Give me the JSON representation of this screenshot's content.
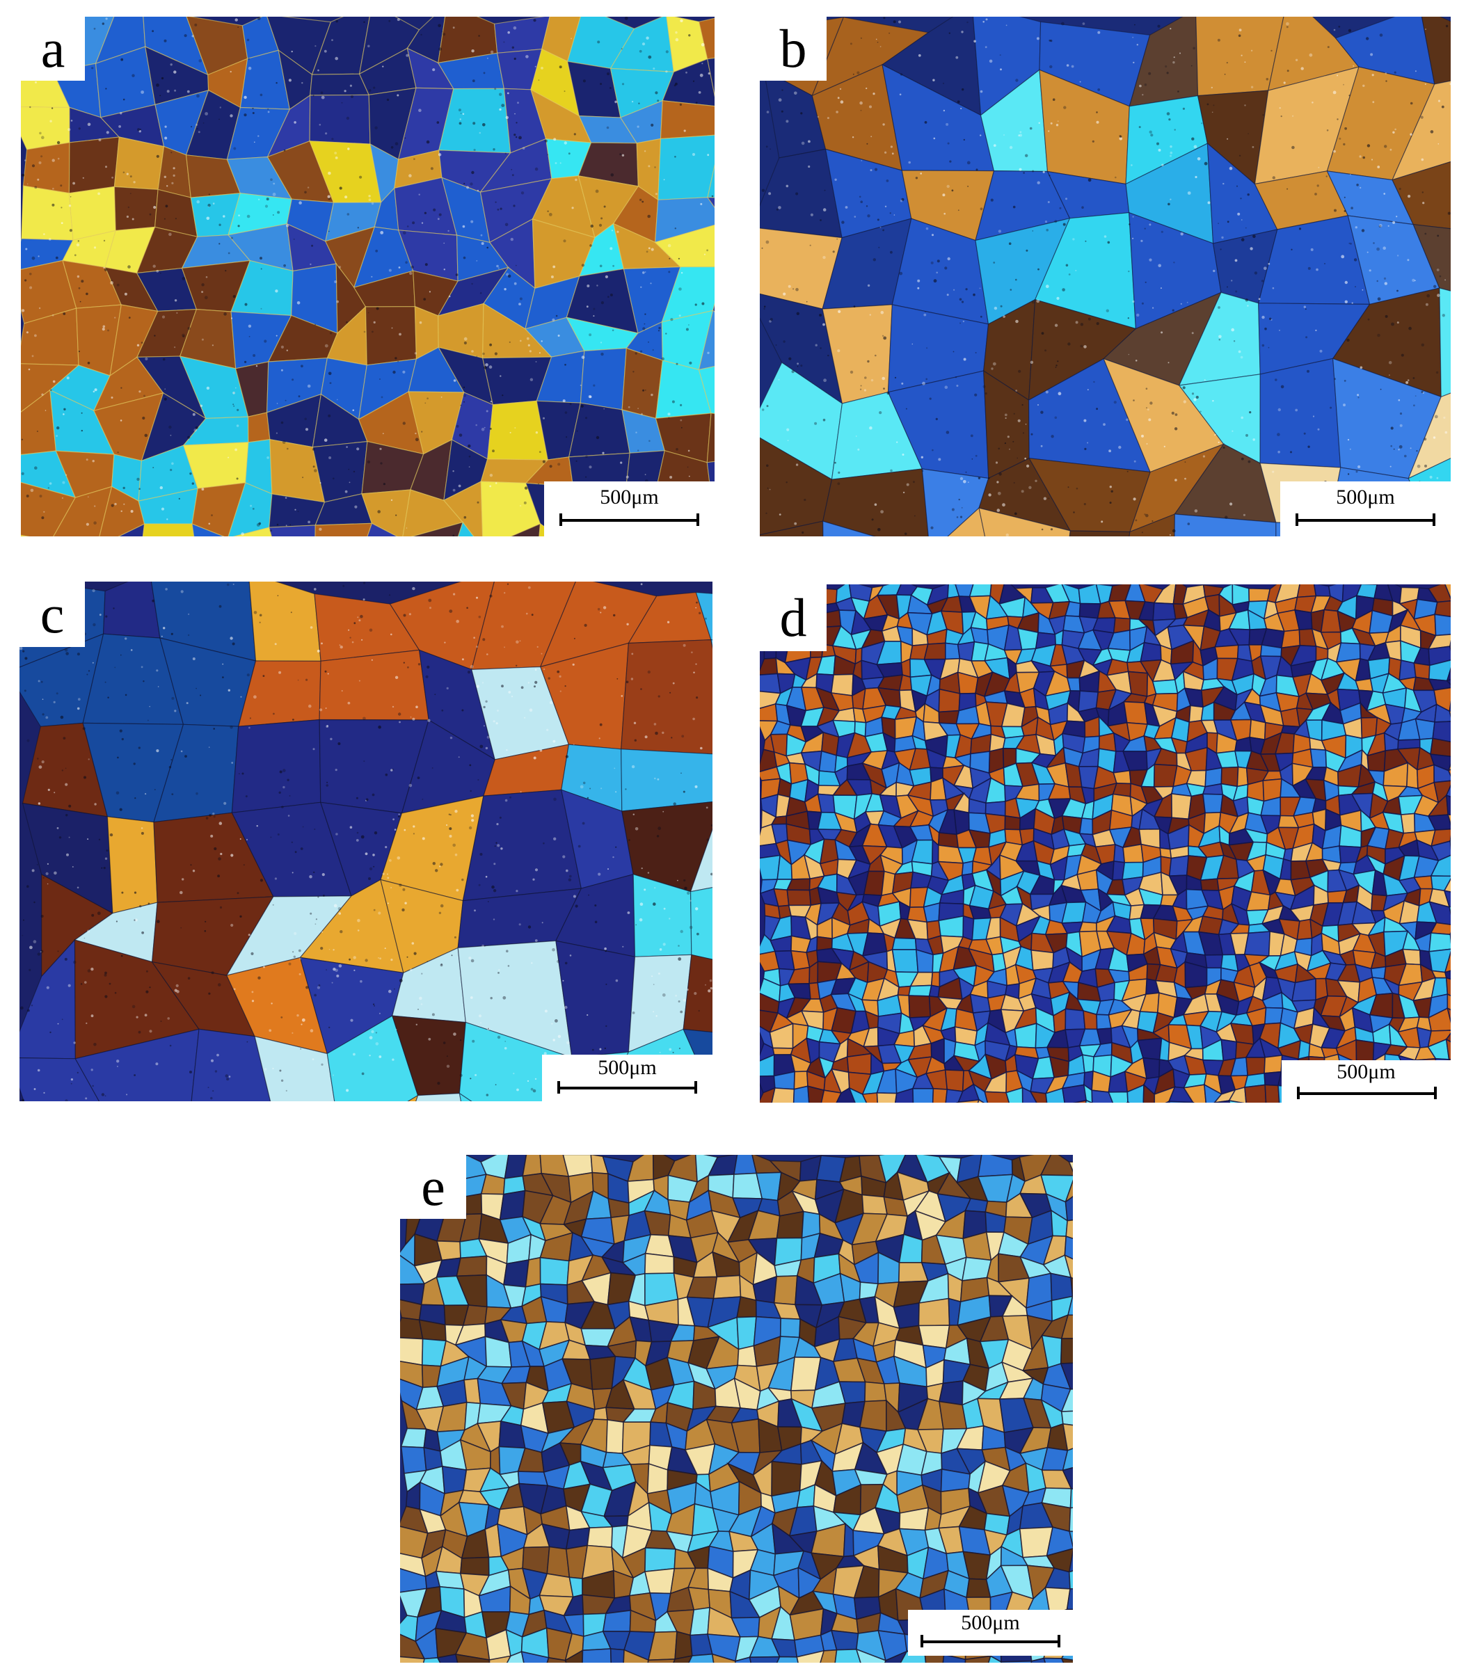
{
  "figure": {
    "panels": [
      {
        "id": "a",
        "label": "a",
        "scale_bar": "500μm",
        "palette": [
          "#1a2470",
          "#222c8a",
          "#2e3aa6",
          "#4b2a2e",
          "#6b3418",
          "#8a4a1c",
          "#b5651d",
          "#d49a2c",
          "#e6d21f",
          "#f1e94a",
          "#1f5fd0",
          "#3a8de0",
          "#27c6e8",
          "#36e6f2"
        ]
      },
      {
        "id": "b",
        "label": "b",
        "scale_bar": "500μm",
        "palette": [
          "#1a2b78",
          "#1d3c9a",
          "#2456c8",
          "#3b7fe6",
          "#2aaee8",
          "#33d6f0",
          "#5ae8f5",
          "#5a3218",
          "#7a4418",
          "#a8621e",
          "#d08e34",
          "#e9b25c",
          "#f1d9a2",
          "#5c4030"
        ]
      },
      {
        "id": "c",
        "label": "c",
        "scale_bar": "500μm",
        "palette": [
          "#1b2168",
          "#222a86",
          "#2a3aa4",
          "#174a9e",
          "#2a7fd8",
          "#36b4ea",
          "#47dcf0",
          "#bfe8f2",
          "#4c2016",
          "#6e2a14",
          "#9a3e18",
          "#c85a1c",
          "#e07a1e",
          "#e8a830"
        ]
      },
      {
        "id": "d",
        "label": "d",
        "scale_bar": "500μm",
        "palette": [
          "#1c1f74",
          "#23309a",
          "#2c4ab8",
          "#2f7fe0",
          "#33b8ec",
          "#4ad8f0",
          "#6a2414",
          "#8a3414",
          "#b04a16",
          "#d26a1c",
          "#e89a3a",
          "#f0c070"
        ]
      },
      {
        "id": "e",
        "label": "e",
        "scale_bar": "500μm",
        "palette": [
          "#1b2a78",
          "#1f49a8",
          "#2d73d6",
          "#3ea6e8",
          "#4fd0f0",
          "#8ee6f4",
          "#5a3418",
          "#7a4a22",
          "#9c6428",
          "#c08a3c",
          "#e0b262",
          "#f4e2a8"
        ]
      }
    ]
  }
}
